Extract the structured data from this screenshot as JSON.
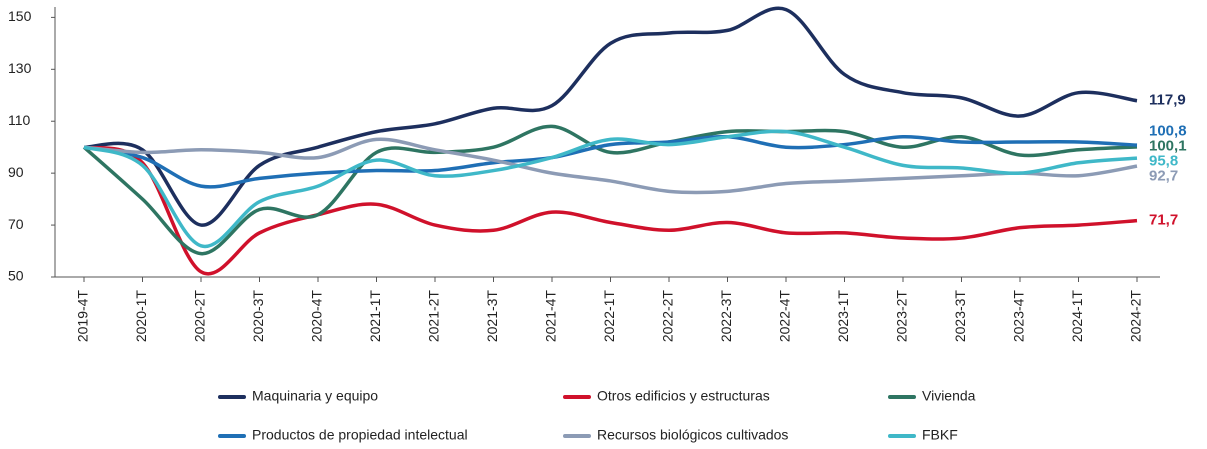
{
  "chart_data": {
    "type": "line",
    "categories": [
      "2019-4T",
      "2020-1T",
      "2020-2T",
      "2020-3T",
      "2020-4T",
      "2021-1T",
      "2021-2T",
      "2021-3T",
      "2021-4T",
      "2022-1T",
      "2022-2T",
      "2022-3T",
      "2022-4T",
      "2023-1T",
      "2023-2T",
      "2023-3T",
      "2023-4T",
      "2024-1T",
      "2024-2T"
    ],
    "series": [
      {
        "name": "Maquinaria y equipo",
        "color": "#1d2f5e",
        "values": [
          100,
          99,
          70,
          93,
          100,
          106,
          109,
          115,
          116,
          140,
          144,
          145,
          153,
          128,
          121,
          119,
          112,
          121,
          117.9
        ],
        "value_labels": [
          null,
          null,
          null,
          null,
          null,
          null,
          null,
          null,
          null,
          null,
          null,
          null,
          null,
          null,
          null,
          null,
          null,
          null,
          "117,9"
        ]
      },
      {
        "name": "Otros edificios y estructuras",
        "color": "#d0112b",
        "values": [
          100,
          94,
          52,
          67,
          74,
          78,
          70,
          68,
          75,
          71,
          68,
          71,
          67,
          67,
          65,
          65,
          69,
          70,
          71.7
        ],
        "value_labels": [
          null,
          null,
          null,
          null,
          null,
          null,
          null,
          null,
          null,
          null,
          null,
          null,
          null,
          null,
          null,
          null,
          null,
          null,
          "71,7"
        ]
      },
      {
        "name": "Vivienda",
        "color": "#2e7562",
        "values": [
          100,
          80,
          59,
          76,
          74,
          98,
          98,
          100,
          108,
          98,
          102,
          106,
          106,
          106,
          100,
          104,
          97,
          99,
          100.1
        ],
        "value_labels": [
          null,
          null,
          null,
          null,
          null,
          null,
          null,
          null,
          null,
          null,
          null,
          null,
          null,
          null,
          null,
          null,
          null,
          null,
          "100,1"
        ]
      },
      {
        "name": "Productos de propiedad intelectual",
        "color": "#1f6fb5",
        "values": [
          100,
          96,
          85,
          88,
          90,
          91,
          91,
          94,
          96,
          101,
          102,
          104,
          100,
          101,
          104,
          102,
          102,
          102,
          100.8
        ],
        "value_labels": [
          null,
          null,
          null,
          null,
          null,
          null,
          null,
          null,
          null,
          null,
          null,
          null,
          null,
          null,
          null,
          null,
          null,
          null,
          "100,8"
        ]
      },
      {
        "name": "Recursos biológicos cultivados",
        "color": "#8c9bb5",
        "values": [
          100,
          98,
          99,
          98,
          96,
          103,
          99,
          95,
          90,
          87,
          83,
          83,
          86,
          87,
          88,
          89,
          90,
          89,
          92.7
        ],
        "value_labels": [
          null,
          null,
          null,
          null,
          null,
          null,
          null,
          null,
          null,
          null,
          null,
          null,
          null,
          null,
          null,
          null,
          null,
          null,
          "92,7"
        ]
      },
      {
        "name": "FBKF",
        "color": "#3fb8c8",
        "values": [
          100,
          93,
          62,
          79,
          85,
          95,
          89,
          91,
          96,
          103,
          101,
          104,
          106,
          100,
          93,
          92,
          90,
          94,
          95.8
        ],
        "value_labels": [
          null,
          null,
          null,
          null,
          null,
          null,
          null,
          null,
          null,
          null,
          null,
          null,
          null,
          null,
          null,
          null,
          null,
          null,
          "95,8"
        ]
      }
    ],
    "ylim": [
      50,
      154
    ],
    "yticks": [
      50,
      70,
      90,
      110,
      130,
      150
    ]
  }
}
